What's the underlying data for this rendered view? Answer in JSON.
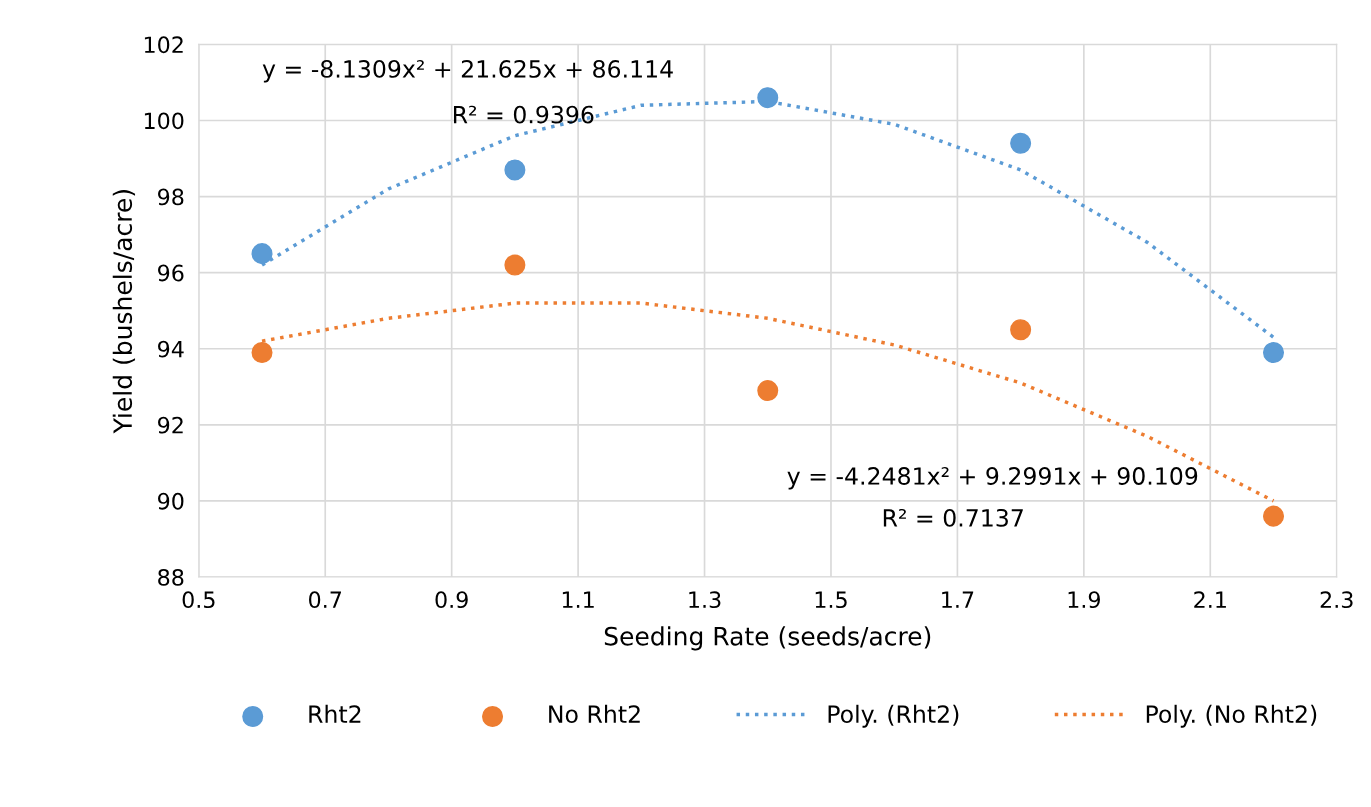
{
  "chart_data": {
    "type": "scatter",
    "xlabel": "Seeding Rate (seeds/acre)",
    "ylabel": "Yield (bushels/acre)",
    "xlim": [
      0.5,
      2.3
    ],
    "xticks": [
      0.5,
      0.7,
      0.9,
      1.1,
      1.3,
      1.5,
      1.7,
      1.9,
      2.1,
      2.3
    ],
    "ylim": [
      88,
      102
    ],
    "yticks": [
      88,
      90,
      92,
      94,
      96,
      98,
      100,
      102
    ],
    "grid": true,
    "legend": "bottom",
    "series": [
      {
        "name": "Rht2",
        "marker": "circle",
        "color": "#5b9bd5",
        "x": [
          0.6,
          1.0,
          1.4,
          1.8,
          2.2
        ],
        "values": [
          96.5,
          98.7,
          100.6,
          99.4,
          93.9
        ]
      },
      {
        "name": "No Rht2",
        "marker": "circle",
        "color": "#ed7d31",
        "x": [
          0.6,
          1.0,
          1.4,
          1.8,
          2.2
        ],
        "values": [
          93.9,
          96.2,
          92.9,
          94.5,
          89.6
        ]
      },
      {
        "name": "Poly. (Rht2)",
        "type": "line",
        "line_style": "dotted",
        "color": "#5b9bd5",
        "x": [
          0.6,
          0.8,
          1.0,
          1.2,
          1.4,
          1.6,
          1.8,
          2.0,
          2.2
        ],
        "values": [
          96.2,
          98.2,
          99.6,
          100.4,
          100.5,
          99.9,
          98.7,
          96.8,
          94.3
        ]
      },
      {
        "name": "Poly. (No Rht2)",
        "type": "line",
        "line_style": "dotted",
        "color": "#ed7d31",
        "x": [
          0.6,
          0.8,
          1.0,
          1.2,
          1.4,
          1.6,
          1.8,
          2.0,
          2.2
        ],
        "values": [
          94.2,
          94.8,
          95.2,
          95.2,
          94.8,
          94.1,
          93.1,
          91.7,
          90.0
        ]
      }
    ],
    "annotations": [
      "y = -8.1309x² + 21.625x + 86.114",
      "R² = 0.9396",
      "y = -4.2481x² + 9.2991x + 90.109",
      "R² = 0.7137"
    ]
  }
}
